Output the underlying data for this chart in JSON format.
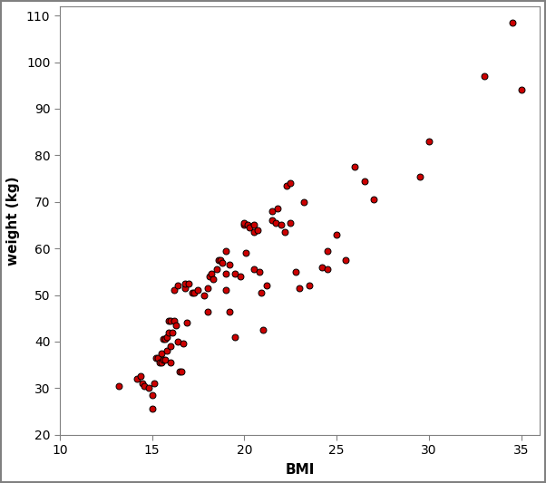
{
  "scatter_points": [
    [
      13.2,
      30.5
    ],
    [
      14.2,
      32.0
    ],
    [
      14.4,
      32.5
    ],
    [
      14.5,
      31.0
    ],
    [
      14.6,
      30.5
    ],
    [
      14.8,
      30.0
    ],
    [
      15.0,
      25.5
    ],
    [
      15.0,
      28.5
    ],
    [
      15.1,
      31.0
    ],
    [
      15.2,
      36.5
    ],
    [
      15.3,
      36.5
    ],
    [
      15.4,
      35.5
    ],
    [
      15.5,
      35.5
    ],
    [
      15.5,
      37.5
    ],
    [
      15.6,
      36.0
    ],
    [
      15.6,
      40.5
    ],
    [
      15.7,
      36.0
    ],
    [
      15.7,
      40.5
    ],
    [
      15.8,
      38.0
    ],
    [
      15.8,
      41.0
    ],
    [
      15.9,
      42.0
    ],
    [
      15.9,
      44.5
    ],
    [
      16.0,
      35.5
    ],
    [
      16.0,
      39.0
    ],
    [
      16.0,
      44.5
    ],
    [
      16.1,
      42.0
    ],
    [
      16.2,
      44.5
    ],
    [
      16.2,
      51.0
    ],
    [
      16.3,
      43.5
    ],
    [
      16.4,
      40.0
    ],
    [
      16.4,
      52.0
    ],
    [
      16.5,
      33.5
    ],
    [
      16.6,
      33.5
    ],
    [
      16.7,
      39.5
    ],
    [
      16.8,
      51.5
    ],
    [
      16.8,
      52.5
    ],
    [
      16.9,
      44.0
    ],
    [
      17.0,
      52.5
    ],
    [
      17.2,
      50.5
    ],
    [
      17.3,
      50.5
    ],
    [
      17.5,
      51.0
    ],
    [
      17.8,
      50.0
    ],
    [
      18.0,
      46.5
    ],
    [
      18.0,
      51.5
    ],
    [
      18.1,
      54.0
    ],
    [
      18.2,
      54.5
    ],
    [
      18.3,
      53.5
    ],
    [
      18.5,
      55.5
    ],
    [
      18.6,
      57.5
    ],
    [
      18.7,
      57.5
    ],
    [
      18.8,
      57.0
    ],
    [
      19.0,
      51.0
    ],
    [
      19.0,
      54.5
    ],
    [
      19.0,
      59.5
    ],
    [
      19.2,
      46.5
    ],
    [
      19.2,
      56.5
    ],
    [
      19.5,
      41.0
    ],
    [
      19.5,
      54.5
    ],
    [
      19.8,
      54.0
    ],
    [
      20.0,
      65.0
    ],
    [
      20.0,
      65.5
    ],
    [
      20.1,
      59.0
    ],
    [
      20.2,
      65.0
    ],
    [
      20.3,
      64.5
    ],
    [
      20.5,
      55.5
    ],
    [
      20.5,
      63.5
    ],
    [
      20.5,
      65.0
    ],
    [
      20.7,
      64.0
    ],
    [
      20.8,
      55.0
    ],
    [
      20.9,
      50.5
    ],
    [
      21.0,
      42.5
    ],
    [
      21.2,
      52.0
    ],
    [
      21.5,
      66.0
    ],
    [
      21.5,
      68.0
    ],
    [
      21.7,
      65.5
    ],
    [
      21.8,
      68.5
    ],
    [
      22.0,
      65.0
    ],
    [
      22.2,
      63.5
    ],
    [
      22.3,
      73.5
    ],
    [
      22.5,
      74.0
    ],
    [
      22.5,
      65.5
    ],
    [
      22.8,
      55.0
    ],
    [
      23.0,
      51.5
    ],
    [
      23.2,
      70.0
    ],
    [
      23.5,
      52.0
    ],
    [
      24.2,
      56.0
    ],
    [
      24.5,
      55.5
    ],
    [
      24.5,
      59.5
    ],
    [
      25.0,
      63.0
    ],
    [
      25.5,
      57.5
    ],
    [
      26.0,
      77.5
    ],
    [
      26.5,
      74.5
    ],
    [
      27.0,
      70.5
    ],
    [
      29.5,
      75.5
    ],
    [
      30.0,
      83.0
    ],
    [
      33.0,
      97.0
    ],
    [
      34.5,
      108.5
    ],
    [
      35.0,
      94.0
    ]
  ],
  "marker_facecolor": "#cc0000",
  "marker_edgecolor": "#000000",
  "marker_size": 5,
  "marker_style": "o",
  "marker_linewidth": 0.7,
  "xlabel": "BMI",
  "ylabel": "weight (kg)",
  "xlim": [
    10,
    36
  ],
  "ylim": [
    20,
    112
  ],
  "xticks": [
    10,
    15,
    20,
    25,
    30,
    35
  ],
  "yticks": [
    20,
    30,
    40,
    50,
    60,
    70,
    80,
    90,
    100,
    110
  ],
  "background_color": "#ffffff",
  "figure_border_color": "#808080",
  "xlabel_fontsize": 11,
  "ylabel_fontsize": 11,
  "tick_fontsize": 10,
  "font_family": "Arial"
}
